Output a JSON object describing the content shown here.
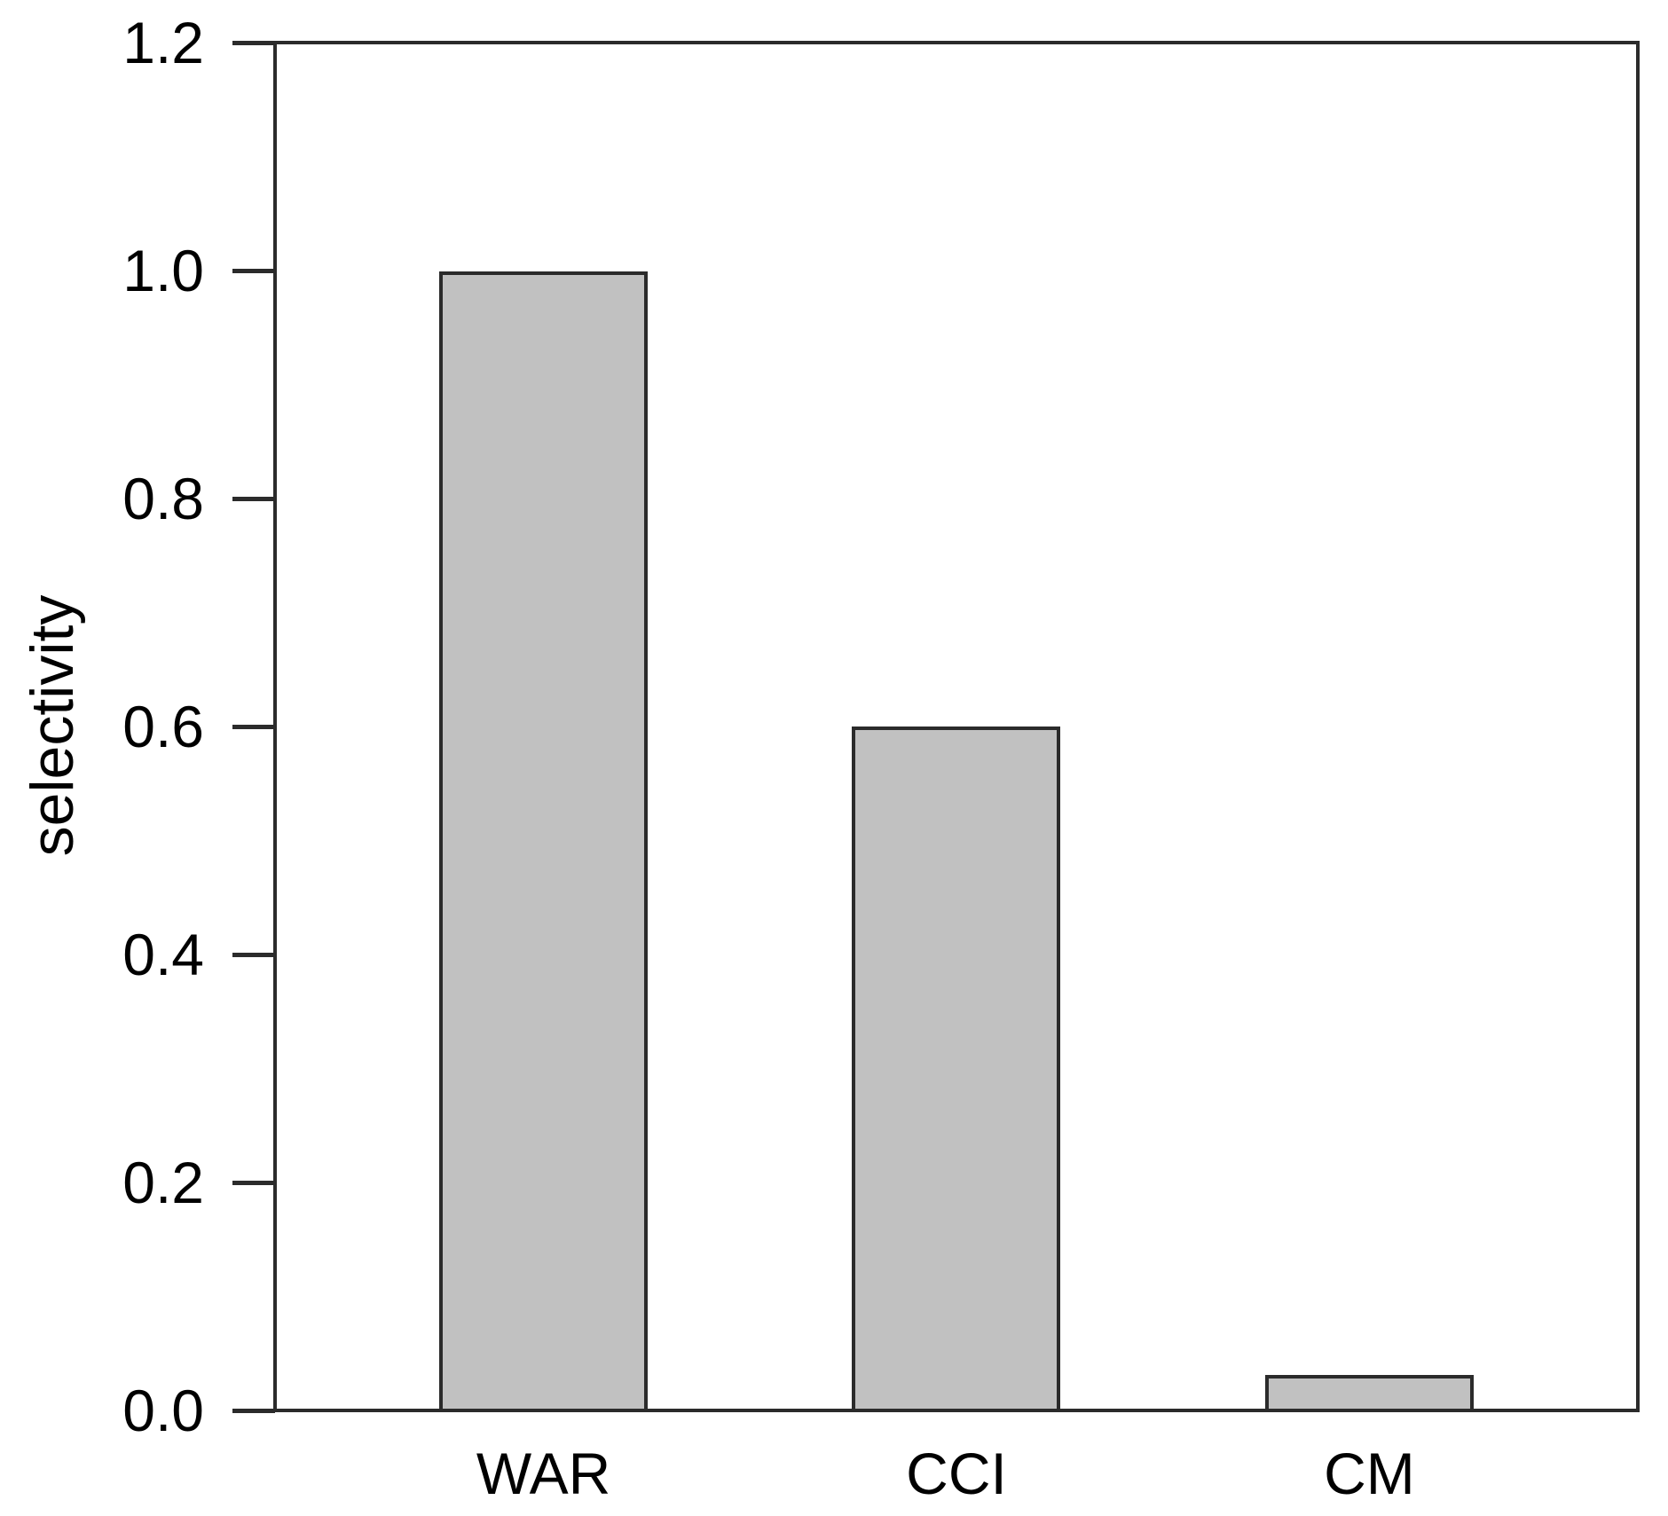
{
  "chart_data": {
    "type": "bar",
    "title": "",
    "xlabel": "",
    "ylabel": "selectivity",
    "categories": [
      "WAR",
      "CCI",
      "CM"
    ],
    "values": [
      1.0,
      0.6,
      0.03
    ],
    "ylim": [
      0,
      1.2
    ],
    "yticks": [
      {
        "value": 0.0,
        "label": "0.0"
      },
      {
        "value": 0.2,
        "label": "0.2"
      },
      {
        "value": 0.4,
        "label": "0.4"
      },
      {
        "value": 0.6,
        "label": "0.6"
      },
      {
        "value": 0.8,
        "label": "0.8"
      },
      {
        "value": 1.0,
        "label": "1.0"
      },
      {
        "value": 1.2,
        "label": "1.2"
      }
    ],
    "grid": false,
    "legend": false,
    "colors": {
      "bar_fill": "#c1c1c1",
      "bar_border": "#2b2b2b",
      "axis": "#2b2b2b",
      "text": "#000000",
      "background": "#ffffff"
    }
  }
}
